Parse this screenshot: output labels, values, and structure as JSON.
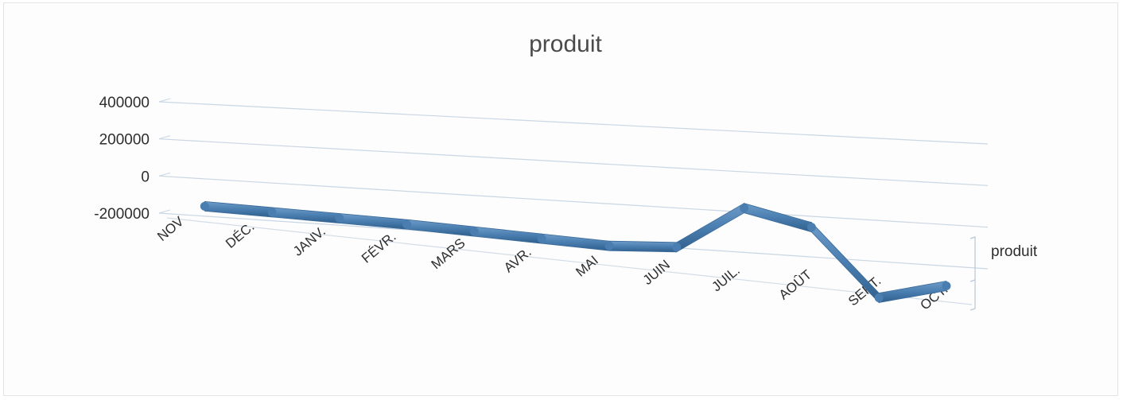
{
  "chart_data": {
    "type": "line",
    "title": "produit",
    "categories": [
      "NOV",
      "DÉC.",
      "JANV.",
      "FÉVR.",
      "MARS",
      "AVR.",
      "MAI",
      "JUIN",
      "JUIL.",
      "AOÛT",
      "SEPT.",
      "OCT."
    ],
    "series": [
      {
        "name": "produit",
        "values": [
          15000,
          5000,
          -5000,
          -15000,
          -30000,
          -45000,
          -60000,
          -45000,
          170000,
          95000,
          -230000,
          -150000
        ]
      }
    ],
    "yticks": [
      "400000",
      "200000",
      "0",
      "-200000"
    ],
    "ylim": [
      -200000,
      400000
    ],
    "grid": true,
    "three_d": true,
    "line_color": "#4a7eb0"
  }
}
